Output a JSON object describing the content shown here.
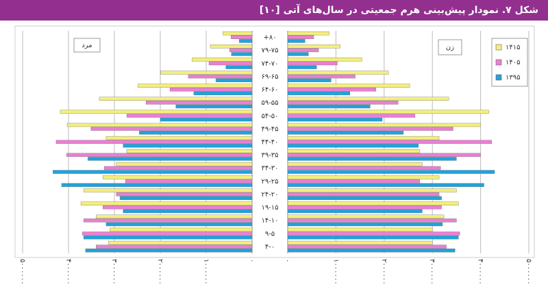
{
  "chart_data": {
    "type": "pyramid",
    "title": "شکل ۷. نمودار پیش‌بینی هرم جمعیتی در سال‌های آتی [۱۰]",
    "left_label": "مرد",
    "right_label": "زن",
    "categories": [
      "+۸۰",
      "۷۹-۷۵",
      "۷۴-۷۰",
      "۶۹-۶۵",
      "۶۴-۶۰",
      "۵۹-۵۵",
      "۵۴-۵۰",
      "۴۹-۴۵",
      "۴۴-۴۰",
      "۳۹-۳۵",
      "۳۴-۳۰",
      "۲۹-۲۵",
      "۲۴-۲۰",
      "۱۹-۱۵",
      "۱۴-۱۰",
      "۹-۵",
      "۴-۰"
    ],
    "series": [
      {
        "name": "۱۴۱۵",
        "color": "#f4ef7a",
        "male": [
          640000,
          910000,
          1310000,
          1990000,
          2490000,
          3330000,
          4180000,
          4030000,
          3180000,
          2730000,
          2960000,
          3250000,
          3670000,
          3730000,
          3400000,
          3100000,
          3130000
        ],
        "female": [
          860000,
          1090000,
          1540000,
          2090000,
          2530000,
          3340000,
          4170000,
          4000000,
          3140000,
          2740000,
          2790000,
          3140000,
          3500000,
          3540000,
          3240000,
          3000000,
          3000000
        ]
      },
      {
        "name": "۱۴۰۵",
        "color": "#ea7fd3",
        "male": [
          460000,
          490000,
          940000,
          1390000,
          1790000,
          2310000,
          2730000,
          3510000,
          4270000,
          4040000,
          3220000,
          2760000,
          2960000,
          3250000,
          3670000,
          3700000,
          3400000
        ],
        "female": [
          540000,
          640000,
          1030000,
          1400000,
          1830000,
          2290000,
          2640000,
          3430000,
          4230000,
          4000000,
          3170000,
          2740000,
          3140000,
          3190000,
          3500000,
          3570000,
          3290000
        ]
      },
      {
        "name": "۱۳۹۵",
        "color": "#1fa3dc",
        "male": [
          280000,
          450000,
          570000,
          790000,
          1270000,
          1660000,
          2000000,
          2460000,
          2810000,
          3580000,
          4340000,
          4150000,
          2880000,
          2810000,
          3180000,
          3670000,
          3630000
        ],
        "female": [
          360000,
          430000,
          600000,
          900000,
          1290000,
          1710000,
          1960000,
          2400000,
          2710000,
          3500000,
          4290000,
          4070000,
          3190000,
          2790000,
          3210000,
          3540000,
          3470000
        ]
      }
    ],
    "xlim": [
      0,
      5000000
    ],
    "xticks": [
      {
        "value": 0,
        "label": "۰"
      },
      {
        "value": 1000000,
        "label": "۱۰۰۰۰۰۰"
      },
      {
        "value": 2000000,
        "label": "۲۰۰۰۰۰۰"
      },
      {
        "value": 3000000,
        "label": "۳۰۰۰۰۰۰"
      },
      {
        "value": 4000000,
        "label": "۴۰۰۰۰۰۰"
      },
      {
        "value": 5000000,
        "label": "۵۰۰۰۰۰۰"
      }
    ],
    "grid": true,
    "legend": "top-right"
  }
}
